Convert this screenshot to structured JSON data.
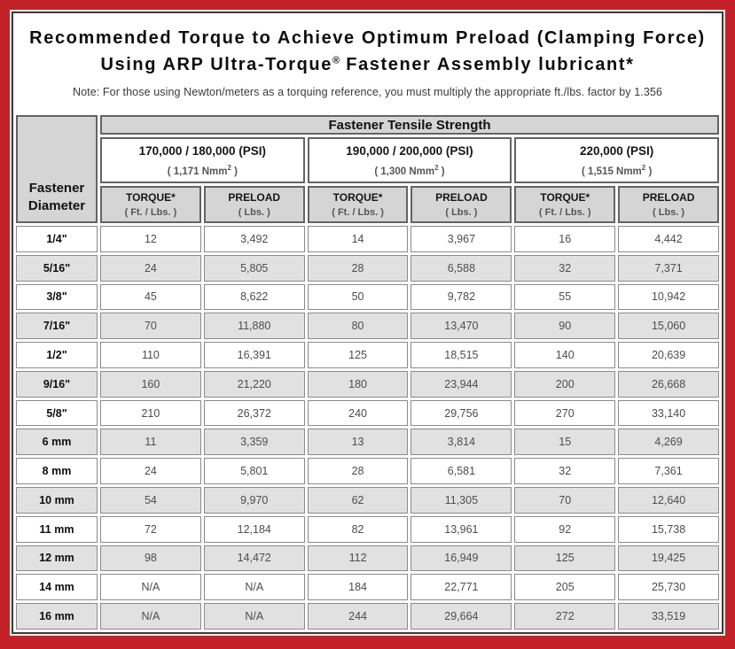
{
  "colors": {
    "frame_red": "#c32127",
    "header_gray": "#d5d5d5",
    "row_alt_gray": "#e1e1e1",
    "content_border": "#3c3c3c"
  },
  "header": {
    "title_line1": "Recommended Torque to Achieve Optimum Preload (Clamping Force)",
    "title_line2_pre": "Using ARP Ultra-Torque",
    "title_line2_sup": "®",
    "title_line2_post": " Fastener Assembly lubricant*",
    "note": "Note: For those using Newton/meters as a torquing reference, you must multiply the appropriate ft./lbs. factor by 1.356"
  },
  "table": {
    "tensile_strength_label": "Fastener Tensile Strength",
    "diameter_label": "Fastener Diameter",
    "groups": [
      {
        "psi": "170,000 / 180,000 (PSI)",
        "nmm_pre": "( 1,171 Nmm",
        "nmm_sup": "2",
        "nmm_post": " )"
      },
      {
        "psi": "190,000 / 200,000 (PSI)",
        "nmm_pre": "( 1,300 Nmm",
        "nmm_sup": "2",
        "nmm_post": " )"
      },
      {
        "psi": "220,000 (PSI)",
        "nmm_pre": "( 1,515 Nmm",
        "nmm_sup": "2",
        "nmm_post": " )"
      }
    ],
    "subheaders": {
      "torque_label": "TORQUE*",
      "torque_unit": "( Ft. / Lbs. )",
      "preload_label": "PRELOAD",
      "preload_unit": "( Lbs. )"
    },
    "rows": [
      {
        "diameter": "1/4\"",
        "values": [
          "12",
          "3,492",
          "14",
          "3,967",
          "16",
          "4,442"
        ]
      },
      {
        "diameter": "5/16\"",
        "values": [
          "24",
          "5,805",
          "28",
          "6,588",
          "32",
          "7,371"
        ]
      },
      {
        "diameter": "3/8\"",
        "values": [
          "45",
          "8,622",
          "50",
          "9,782",
          "55",
          "10,942"
        ]
      },
      {
        "diameter": "7/16\"",
        "values": [
          "70",
          "11,880",
          "80",
          "13,470",
          "90",
          "15,060"
        ]
      },
      {
        "diameter": "1/2\"",
        "values": [
          "110",
          "16,391",
          "125",
          "18,515",
          "140",
          "20,639"
        ]
      },
      {
        "diameter": "9/16\"",
        "values": [
          "160",
          "21,220",
          "180",
          "23,944",
          "200",
          "26,668"
        ]
      },
      {
        "diameter": "5/8\"",
        "values": [
          "210",
          "26,372",
          "240",
          "29,756",
          "270",
          "33,140"
        ]
      },
      {
        "diameter": "6 mm",
        "values": [
          "11",
          "3,359",
          "13",
          "3,814",
          "15",
          "4,269"
        ]
      },
      {
        "diameter": "8 mm",
        "values": [
          "24",
          "5,801",
          "28",
          "6,581",
          "32",
          "7,361"
        ]
      },
      {
        "diameter": "10 mm",
        "values": [
          "54",
          "9,970",
          "62",
          "11,305",
          "70",
          "12,640"
        ]
      },
      {
        "diameter": "11 mm",
        "values": [
          "72",
          "12,184",
          "82",
          "13,961",
          "92",
          "15,738"
        ]
      },
      {
        "diameter": "12 mm",
        "values": [
          "98",
          "14,472",
          "112",
          "16,949",
          "125",
          "19,425"
        ]
      },
      {
        "diameter": "14 mm",
        "values": [
          "N/A",
          "N/A",
          "184",
          "22,771",
          "205",
          "25,730"
        ]
      },
      {
        "diameter": "16 mm",
        "values": [
          "N/A",
          "N/A",
          "244",
          "29,664",
          "272",
          "33,519"
        ]
      }
    ]
  }
}
